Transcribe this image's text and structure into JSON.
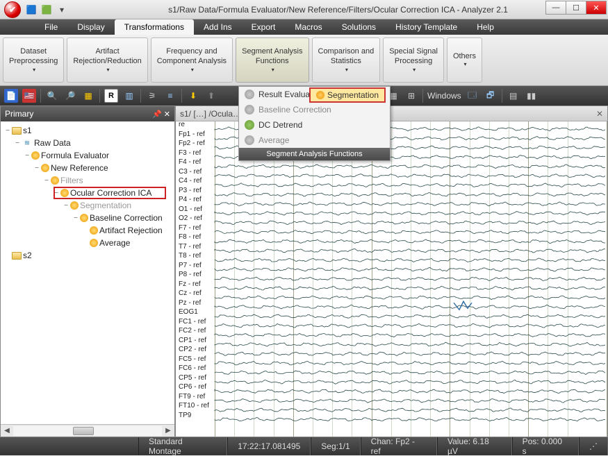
{
  "window": {
    "title": "s1/Raw Data/Formula Evaluator/New Reference/Filters/Ocular Correction ICA - Analyzer 2.1"
  },
  "menu": {
    "items": [
      "File",
      "Display",
      "Transformations",
      "Add Ins",
      "Export",
      "Macros",
      "Solutions",
      "History Template",
      "Help"
    ],
    "active_index": 2
  },
  "ribbon": {
    "groups": [
      "Dataset\nPreprocessing",
      "Artifact\nRejection/Reduction",
      "Frequency and\nComponent Analysis",
      "Segment Analysis\nFunctions",
      "Comparison and\nStatistics",
      "Special Signal\nProcessing",
      "Others"
    ],
    "active_group_index": 3
  },
  "ribbon_dropdown": {
    "rows": [
      {
        "label": "Result Evaluation",
        "dark": true,
        "arrow": true
      },
      {
        "label": "Baseline Correction"
      },
      {
        "label": "DC Detrend",
        "dark": true,
        "green": true
      },
      {
        "label": "Average"
      }
    ],
    "highlight": "Segmentation",
    "footer": "Segment Analysis Functions"
  },
  "toolstrip": {
    "windows_label": "Windows"
  },
  "tree": {
    "title": "Primary",
    "nodes": [
      {
        "ind": 0,
        "exp": "−",
        "ico": "fold",
        "label": "s1"
      },
      {
        "ind": 1,
        "exp": "−",
        "ico": "wave",
        "label": "Raw Data"
      },
      {
        "ind": 2,
        "exp": "−",
        "ico": "gear",
        "label": "Formula Evaluator"
      },
      {
        "ind": 3,
        "exp": "−",
        "ico": "gear",
        "label": "New Reference"
      },
      {
        "ind": 4,
        "exp": "−",
        "ico": "gear",
        "label": "Filters",
        "dim": true
      },
      {
        "ind": 5,
        "exp": "−",
        "ico": "gear",
        "label": "Ocular Correction ICA",
        "hl": true
      },
      {
        "ind": 6,
        "exp": "−",
        "ico": "gear",
        "label": "Segmentation",
        "dim": true
      },
      {
        "ind": 7,
        "exp": "−",
        "ico": "gear",
        "label": "Baseline Correction"
      },
      {
        "ind": 8,
        "exp": "",
        "ico": "gear",
        "label": "Artifact Rejection"
      },
      {
        "ind": 8,
        "exp": "",
        "ico": "gear",
        "label": "Average"
      },
      {
        "ind": 0,
        "exp": "",
        "ico": "fold",
        "label": "s2"
      }
    ]
  },
  "signal": {
    "tab": "s1/ […] /Ocula…",
    "channels": [
      "re",
      "Fp1 - ref",
      "Fp2 - ref",
      "F3 - ref",
      "F4 - ref",
      "C3 - ref",
      "C4 - ref",
      "P3 - ref",
      "P4 - ref",
      "O1 - ref",
      "O2 - ref",
      "F7 - ref",
      "F8 - ref",
      "T7 - ref",
      "T8 - ref",
      "P7 - ref",
      "P8 - ref",
      "Fz - ref",
      "Cz - ref",
      "Pz - ref",
      "EOG1",
      "FC1 - ref",
      "FC2 - ref",
      "CP1 - ref",
      "CP2 - ref",
      "FC5 - ref",
      "FC6 - ref",
      "CP5 - ref",
      "CP6 - ref",
      "FT9 - ref",
      "FT10 - ref",
      "TP9"
    ]
  },
  "status": {
    "montage": "Standard Montage",
    "time": "17:22:17.081495",
    "seg": "Seg:1/1",
    "chan": "Chan:  Fp2 - ref",
    "value": "Value: 6.18 µV",
    "pos": "Pos:  0.000 s"
  },
  "colors": {
    "highlight_border": "#cc2222",
    "wave": "#2a4a4a"
  }
}
